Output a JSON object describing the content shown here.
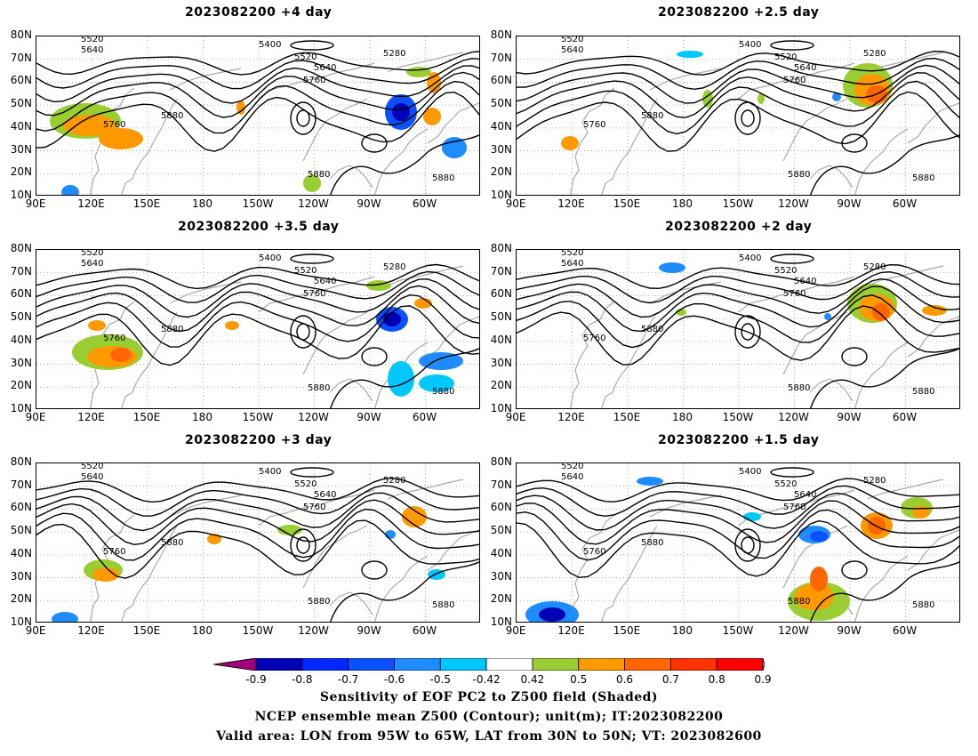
{
  "panels": [
    {
      "title": "2023082200 +4 day"
    },
    {
      "title": "2023082200 +2.5 day"
    },
    {
      "title": "2023082200 +3.5 day"
    },
    {
      "title": "2023082200 +2 day"
    },
    {
      "title": "2023082200 +3 day"
    },
    {
      "title": "2023082200 +1.5 day"
    }
  ],
  "axes": {
    "y_ticks": [
      "80N",
      "70N",
      "60N",
      "50N",
      "40N",
      "30N",
      "20N",
      "10N"
    ],
    "x_ticks": [
      "90E",
      "120E",
      "150E",
      "180",
      "150W",
      "120W",
      "90W",
      "60W"
    ]
  },
  "contour_labels": [
    "5280",
    "5400",
    "5520",
    "5640",
    "5760",
    "5880"
  ],
  "colorbar": {
    "labels": [
      "-0.9",
      "-0.8",
      "-0.7",
      "-0.6",
      "-0.5",
      "-0.42",
      "0.42",
      "0.5",
      "0.6",
      "0.7",
      "0.8",
      "0.9"
    ],
    "colors": [
      "#a0007a",
      "#0000b4",
      "#0028ff",
      "#0a50ff",
      "#1e8cff",
      "#00c8ff",
      "#ffffff",
      "#9acd32",
      "#ff9900",
      "#ff6600",
      "#ff3300",
      "#ff0000",
      "#ffa0c0"
    ]
  },
  "caption": {
    "line1": "Sensitivity of EOF PC2 to Z500 field (Shaded)",
    "line2": "NCEP ensemble mean Z500 (Contour); unit(m); IT:2023082200",
    "line3": "Valid area: LON from 95W to 65W, LAT from 30N to 50N; VT: 2023082600"
  }
}
